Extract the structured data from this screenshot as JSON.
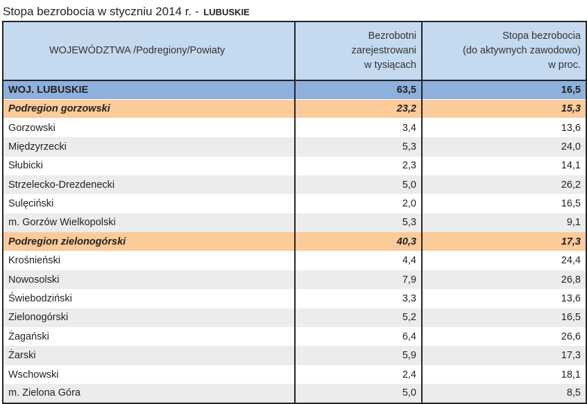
{
  "title": {
    "main": "Stopa bezrobocia w styczniu 2014 r. -",
    "region": "LUBUSKIE"
  },
  "header": {
    "col1": "WOJEWÓDZTWA /Podregiony/Powiaty",
    "col2_lines": [
      "Bezrobotni",
      "zarejestrowani",
      "w tysiącach"
    ],
    "col3_lines": [
      "Stopa bezrobocia",
      "(do aktywnych zawodowo)",
      "w proc."
    ]
  },
  "rows": [
    {
      "type": "voiv",
      "name": "WOJ. LUBUSKIE",
      "unemployed": "63,5",
      "rate": "16,5"
    },
    {
      "type": "sub",
      "name": "Podregion gorzowski",
      "unemployed": "23,2",
      "rate": "15,3"
    },
    {
      "type": "row",
      "name": "Gorzowski",
      "unemployed": "3,4",
      "rate": "13,6"
    },
    {
      "type": "row",
      "name": "Międzyrzecki",
      "unemployed": "5,3",
      "rate": "24,0"
    },
    {
      "type": "row",
      "name": "Słubicki",
      "unemployed": "2,3",
      "rate": "14,1"
    },
    {
      "type": "row",
      "name": "Strzelecko-Drezdenecki",
      "unemployed": "5,0",
      "rate": "26,2"
    },
    {
      "type": "row",
      "name": "Sulęciński",
      "unemployed": "2,0",
      "rate": "16,5"
    },
    {
      "type": "row",
      "name": "m. Gorzów Wielkopolski",
      "unemployed": "5,3",
      "rate": "9,1"
    },
    {
      "type": "sub",
      "name": "Podregion zielonogórski",
      "unemployed": "40,3",
      "rate": "17,3"
    },
    {
      "type": "row",
      "name": "Krośnieński",
      "unemployed": "4,4",
      "rate": "24,4"
    },
    {
      "type": "row",
      "name": "Nowosolski",
      "unemployed": "7,9",
      "rate": "26,8"
    },
    {
      "type": "row",
      "name": "Świebodziński",
      "unemployed": "3,3",
      "rate": "13,6"
    },
    {
      "type": "row",
      "name": "Zielonogórski",
      "unemployed": "5,2",
      "rate": "16,5"
    },
    {
      "type": "row",
      "name": "Żagański",
      "unemployed": "6,4",
      "rate": "26,6"
    },
    {
      "type": "row",
      "name": "Żarski",
      "unemployed": "5,9",
      "rate": "17,3"
    },
    {
      "type": "row",
      "name": "Wschowski",
      "unemployed": "2,4",
      "rate": "18,1"
    },
    {
      "type": "row",
      "name": "m. Zielona Góra",
      "unemployed": "5,0",
      "rate": "8,5"
    }
  ],
  "colors": {
    "header_bg": "#c5d9ef",
    "voivodeship_bg": "#8eb0dd",
    "subregion_bg": "#fccb9a",
    "alt_row_bg": "#ececec"
  }
}
